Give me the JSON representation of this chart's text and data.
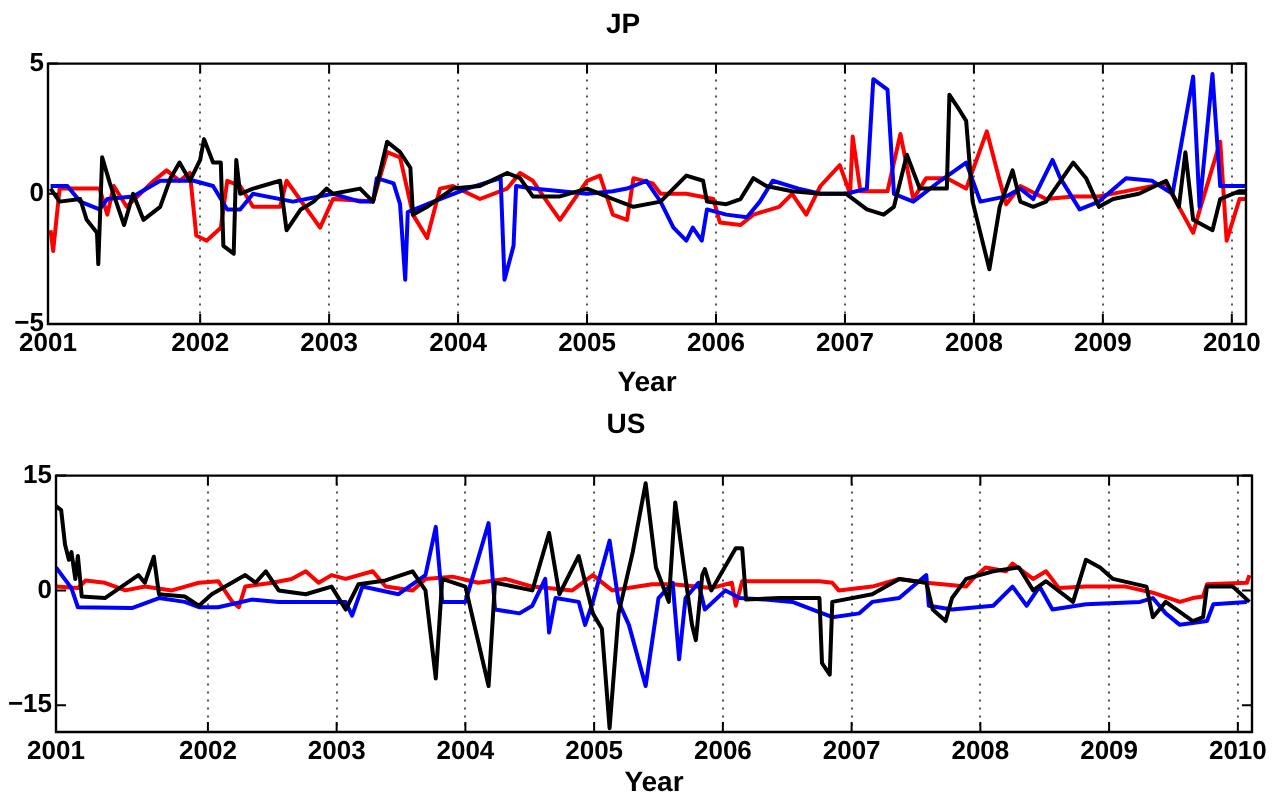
{
  "chart_data": [
    {
      "type": "line",
      "title": "JP",
      "xlabel": "Year",
      "xlim": [
        2000.82,
        2010.11
      ],
      "xticks": [
        {
          "value": 2000.82,
          "label": "2001"
        },
        2002,
        2003,
        2004,
        2005,
        2006,
        2007,
        2008,
        2009,
        2010
      ],
      "ylim": [
        -5,
        5
      ],
      "yticks": [
        -5,
        0,
        5
      ],
      "grid": "x",
      "line_style": "solid",
      "series": [
        {
          "color": "#000000",
          "x": [
            2000.84,
            2000.91,
            2001.07,
            2001.12,
            2001.2,
            2001.21,
            2001.24,
            2001.3,
            2001.41,
            2001.48,
            2001.56,
            2001.69,
            2001.77,
            2001.84,
            2001.92,
            2002.0,
            2002.03,
            2002.1,
            2002.16,
            2002.18,
            2002.26,
            2002.28,
            2002.31,
            2002.41,
            2002.62,
            2002.67,
            2002.78,
            2002.88,
            2002.98,
            2003.03,
            2003.24,
            2003.34,
            2003.45,
            2003.55,
            2003.63,
            2003.65,
            2003.76,
            2003.96,
            2004.17,
            2004.38,
            2004.48,
            2004.58,
            2004.79,
            2005.0,
            2005.2,
            2005.36,
            2005.57,
            2005.77,
            2005.9,
            2005.93,
            2006.08,
            2006.19,
            2006.29,
            2006.39,
            2006.59,
            2006.81,
            2007.01,
            2007.17,
            2007.3,
            2007.38,
            2007.48,
            2007.58,
            2007.79,
            2007.81,
            2007.89,
            2007.94,
            2007.99,
            2008.12,
            2008.2,
            2008.3,
            2008.36,
            2008.46,
            2008.56,
            2008.77,
            2008.87,
            2008.97,
            2009.08,
            2009.28,
            2009.49,
            2009.59,
            2009.64,
            2009.7,
            2009.85,
            2009.91,
            2010.06,
            2010.11
          ],
          "values": [
            0.2,
            -0.3,
            -0.2,
            -1.0,
            -1.5,
            -2.7,
            1.4,
            0.4,
            -1.2,
            0,
            -1.0,
            -0.5,
            0.6,
            1.2,
            0.5,
            1.3,
            2.1,
            1.2,
            1.2,
            -2.0,
            -2.3,
            1.3,
            0,
            0.2,
            0.5,
            -1.4,
            -0.6,
            -0.3,
            0.2,
            0,
            0.2,
            -0.3,
            2.0,
            1.6,
            1.0,
            -0.8,
            -0.5,
            0.2,
            0.3,
            0.8,
            0.6,
            -0.1,
            -0.1,
            0.2,
            -0.2,
            -0.5,
            -0.3,
            0.7,
            0.5,
            -0.3,
            -0.4,
            -0.2,
            0.6,
            0.3,
            0.1,
            0,
            0,
            -0.6,
            -0.8,
            -0.5,
            1.5,
            0.2,
            0.2,
            3.8,
            3.2,
            2.8,
            -0.3,
            -2.9,
            -0.5,
            0.9,
            -0.3,
            -0.5,
            -0.3,
            1.2,
            0.6,
            -0.5,
            -0.2,
            0,
            0.5,
            -0.5,
            1.6,
            -1.0,
            -1.4,
            -0.2,
            0.1,
            0.1
          ]
        },
        {
          "color": "#0000ff",
          "x": [
            2000.84,
            2000.97,
            2001.07,
            2001.22,
            2001.28,
            2001.48,
            2001.69,
            2001.95,
            2002.1,
            2002.21,
            2002.31,
            2002.41,
            2002.72,
            2003.03,
            2003.24,
            2003.34,
            2003.37,
            2003.5,
            2003.55,
            2003.59,
            2003.61,
            2003.81,
            2004.07,
            2004.33,
            2004.36,
            2004.43,
            2004.45,
            2004.58,
            2005.0,
            2005.2,
            2005.31,
            2005.36,
            2005.46,
            2005.57,
            2005.67,
            2005.77,
            2005.82,
            2005.89,
            2005.93,
            2006.08,
            2006.24,
            2006.34,
            2006.44,
            2006.64,
            2006.81,
            2007.01,
            2007.17,
            2007.22,
            2007.33,
            2007.38,
            2007.53,
            2007.74,
            2007.94,
            2008.05,
            2008.25,
            2008.36,
            2008.46,
            2008.61,
            2008.67,
            2008.82,
            2008.97,
            2009.18,
            2009.38,
            2009.54,
            2009.7,
            2009.75,
            2009.85,
            2009.91,
            2010.11
          ],
          "values": [
            0.3,
            0.3,
            -0.3,
            -0.6,
            -0.2,
            -0.1,
            0.5,
            0.5,
            0.3,
            -0.6,
            -0.6,
            0,
            -0.3,
            0,
            -0.3,
            -0.3,
            0.6,
            0.4,
            -0.4,
            -3.3,
            -0.7,
            -0.3,
            0.2,
            0.6,
            -3.3,
            -2.0,
            0.3,
            0.2,
            0,
            0.1,
            0.2,
            0.3,
            0.5,
            -0.3,
            -1.3,
            -1.8,
            -1.3,
            -1.8,
            -0.6,
            -0.8,
            -0.9,
            -0.3,
            0.5,
            0.2,
            0,
            0,
            0.2,
            4.4,
            4.0,
            0,
            -0.3,
            0.5,
            1.2,
            -0.3,
            -0.1,
            0.2,
            -0.2,
            1.3,
            0.6,
            -0.6,
            -0.3,
            0.6,
            0.5,
            0,
            4.5,
            -0.5,
            4.6,
            0.3,
            0.3
          ]
        },
        {
          "color": "#ff0000",
          "x": [
            2000.84,
            2000.86,
            2000.91,
            2001.22,
            2001.28,
            2001.33,
            2001.43,
            2001.64,
            2001.74,
            2001.84,
            2001.92,
            2001.97,
            2002.05,
            2002.16,
            2002.21,
            2002.31,
            2002.41,
            2002.62,
            2002.67,
            2002.93,
            2003.03,
            2003.34,
            2003.45,
            2003.55,
            2003.65,
            2003.76,
            2003.86,
            2003.96,
            2004.17,
            2004.38,
            2004.48,
            2004.58,
            2004.69,
            2004.79,
            2005.0,
            2005.1,
            2005.2,
            2005.31,
            2005.36,
            2005.51,
            2005.57,
            2005.77,
            2005.98,
            2006.03,
            2006.19,
            2006.29,
            2006.49,
            2006.59,
            2006.7,
            2006.81,
            2006.96,
            2007.04,
            2007.06,
            2007.12,
            2007.33,
            2007.43,
            2007.53,
            2007.63,
            2007.79,
            2007.94,
            2008.1,
            2008.2,
            2008.25,
            2008.36,
            2008.56,
            2008.77,
            2008.97,
            2009.28,
            2009.49,
            2009.7,
            2009.77,
            2009.91,
            2009.96,
            2010.06,
            2010.11
          ],
          "values": [
            -1.4,
            -2.2,
            0.2,
            0.2,
            -0.8,
            0.3,
            -0.5,
            0.5,
            0.9,
            0.5,
            0.8,
            -1.6,
            -1.8,
            -1.3,
            0.5,
            0.3,
            -0.5,
            -0.5,
            0.5,
            -1.3,
            -0.2,
            -0.3,
            1.6,
            1.4,
            -0.8,
            -1.7,
            0.2,
            0.3,
            -0.2,
            0.2,
            0.8,
            0.5,
            -0.3,
            -1.0,
            0.5,
            0.7,
            -0.8,
            -1.0,
            0.6,
            0.4,
            0,
            0,
            -0.2,
            -1.1,
            -1.2,
            -0.8,
            -0.5,
            0,
            -0.8,
            0.3,
            1.1,
            0,
            2.2,
            0.1,
            0.1,
            2.3,
            -0.2,
            0.6,
            0.6,
            0.2,
            2.4,
            0.5,
            -0.4,
            0.3,
            -0.2,
            -0.1,
            -0.1,
            0.2,
            0.4,
            -1.5,
            -0.3,
            2.0,
            -1.8,
            -0.2,
            -0.2
          ]
        }
      ]
    },
    {
      "type": "line",
      "title": "US",
      "xlabel": "Year",
      "xlim": [
        2000.82,
        2010.11
      ],
      "xticks": [
        {
          "value": 2000.82,
          "label": "2001"
        },
        2002,
        2003,
        2004,
        2005,
        2006,
        2007,
        2008,
        2009,
        2010
      ],
      "ylim": [
        -18.5,
        15
      ],
      "yticks": [
        -15,
        0,
        15
      ],
      "grid": "x",
      "line_style": "solid",
      "series": [
        {
          "color": "#000000",
          "x": [
            2000.82,
            2000.86,
            2000.89,
            2000.92,
            2000.94,
            2000.97,
            2000.99,
            2001.02,
            2001.2,
            2001.46,
            2001.51,
            2001.58,
            2001.62,
            2001.82,
            2001.93,
            2002.03,
            2002.29,
            2002.37,
            2002.45,
            2002.55,
            2002.76,
            2002.96,
            2003.07,
            2003.17,
            2003.38,
            2003.59,
            2003.69,
            2003.77,
            2003.82,
            2004.0,
            2004.18,
            2004.23,
            2004.52,
            2004.65,
            2004.73,
            2004.88,
            2004.99,
            2005.06,
            2005.12,
            2005.19,
            2005.3,
            2005.4,
            2005.48,
            2005.58,
            2005.63,
            2005.69,
            2005.76,
            2005.79,
            2005.84,
            2005.86,
            2005.91,
            2006.1,
            2006.15,
            2006.18,
            2006.44,
            2006.75,
            2006.77,
            2006.83,
            2006.85,
            2007.16,
            2007.37,
            2007.58,
            2007.63,
            2007.73,
            2007.78,
            2007.89,
            2008.1,
            2008.3,
            2008.41,
            2008.51,
            2008.72,
            2008.82,
            2008.93,
            2009.03,
            2009.29,
            2009.34,
            2009.44,
            2009.65,
            2009.73,
            2009.76,
            2009.96,
            2010.09
          ],
          "values": [
            11,
            10.5,
            6,
            4,
            5,
            1.5,
            4.5,
            -0.8,
            -1,
            2,
            1,
            4.4,
            -0.5,
            -0.8,
            -2,
            -0.5,
            2,
            1,
            2.5,
            0,
            -0.5,
            0.5,
            -2.5,
            0.8,
            1.3,
            2.5,
            0,
            -11.5,
            1.5,
            0.5,
            -12.5,
            1,
            0,
            7.5,
            -0.5,
            4.5,
            -3,
            -5,
            -18,
            -3,
            5,
            14,
            3,
            -1.5,
            11.5,
            4,
            -4.5,
            -6.5,
            2,
            2.8,
            0,
            5.5,
            5.5,
            -1.2,
            -1,
            -1,
            -9.5,
            -11,
            -1.5,
            -0.5,
            1.5,
            1,
            -2.5,
            -4,
            -1,
            1.5,
            2.5,
            3,
            0,
            1.2,
            -1.5,
            4,
            3,
            1.5,
            0.5,
            -3.5,
            -1.5,
            -4,
            -3.5,
            0.5,
            0.5,
            -1.5
          ]
        },
        {
          "color": "#0000ff",
          "x": [
            2000.82,
            2000.94,
            2000.99,
            2001.41,
            2001.62,
            2001.82,
            2001.93,
            2002.08,
            2002.34,
            2002.55,
            2002.86,
            2003.07,
            2003.12,
            2003.2,
            2003.48,
            2003.69,
            2003.77,
            2003.82,
            2004.0,
            2004.18,
            2004.23,
            2004.42,
            2004.52,
            2004.62,
            2004.65,
            2004.7,
            2004.88,
            2004.93,
            2004.99,
            2005.12,
            2005.19,
            2005.27,
            2005.4,
            2005.5,
            2005.61,
            2005.66,
            2005.71,
            2005.81,
            2005.86,
            2006.02,
            2006.13,
            2006.33,
            2006.54,
            2006.85,
            2007.06,
            2007.16,
            2007.37,
            2007.58,
            2007.6,
            2007.78,
            2008.1,
            2008.25,
            2008.36,
            2008.46,
            2008.56,
            2008.82,
            2009.24,
            2009.34,
            2009.44,
            2009.55,
            2009.76,
            2009.81,
            2010.07
          ],
          "values": [
            3,
            0.3,
            -2.2,
            -2.3,
            -1,
            -1.5,
            -2.2,
            -2.2,
            -1.2,
            -1.5,
            -1.5,
            -1.5,
            -3.3,
            0.5,
            -0.5,
            2,
            8.3,
            -1.5,
            -1.5,
            8.8,
            -2.5,
            -3,
            -2,
            1.5,
            -5.5,
            -1,
            -1.5,
            -4.5,
            -1.5,
            6.5,
            -1.5,
            -4.5,
            -12.5,
            -1,
            1,
            -9,
            -1,
            1,
            -2.5,
            0,
            -1,
            -1.2,
            -1.5,
            -3.5,
            -3,
            -1.5,
            -1,
            2,
            -2,
            -2.5,
            -2,
            0.5,
            -2,
            0.5,
            -2.5,
            -1.8,
            -1.5,
            -1,
            -3,
            -4.5,
            -4,
            -1.8,
            -1.5
          ]
        },
        {
          "color": "#ff0000",
          "x": [
            2000.82,
            2000.99,
            2001.05,
            2001.2,
            2001.36,
            2001.51,
            2001.72,
            2001.93,
            2002.08,
            2002.19,
            2002.24,
            2002.29,
            2002.5,
            2002.65,
            2002.76,
            2002.86,
            2002.96,
            2003.07,
            2003.28,
            2003.38,
            2003.59,
            2003.69,
            2003.9,
            2004.1,
            2004.31,
            2004.52,
            2004.83,
            2004.99,
            2005.14,
            2005.45,
            2005.61,
            2005.91,
            2006.07,
            2006.1,
            2006.15,
            2006.75,
            2006.85,
            2006.9,
            2007.16,
            2007.37,
            2007.58,
            2007.89,
            2007.94,
            2008.04,
            2008.2,
            2008.25,
            2008.41,
            2008.51,
            2008.61,
            2008.82,
            2009.13,
            2009.34,
            2009.55,
            2009.65,
            2009.73,
            2009.76,
            2010.07,
            2010.09
          ],
          "values": [
            0.5,
            0.3,
            1.3,
            1,
            0,
            0.5,
            0,
            1,
            1.2,
            -1.5,
            -2.2,
            0.5,
            1,
            1.5,
            2.5,
            1,
            2,
            1.5,
            2.5,
            0.5,
            0,
            1.5,
            1.8,
            1,
            1.5,
            0.5,
            0,
            2,
            0,
            0.8,
            0.8,
            0.3,
            1,
            -2,
            1.2,
            1.2,
            1,
            0,
            0.5,
            1.5,
            1,
            0.5,
            1.5,
            3,
            2.5,
            3.5,
            1.5,
            2.5,
            0.3,
            0.5,
            0.5,
            -0.3,
            -1.5,
            -1,
            -0.8,
            0.8,
            1,
            2
          ]
        }
      ]
    }
  ]
}
